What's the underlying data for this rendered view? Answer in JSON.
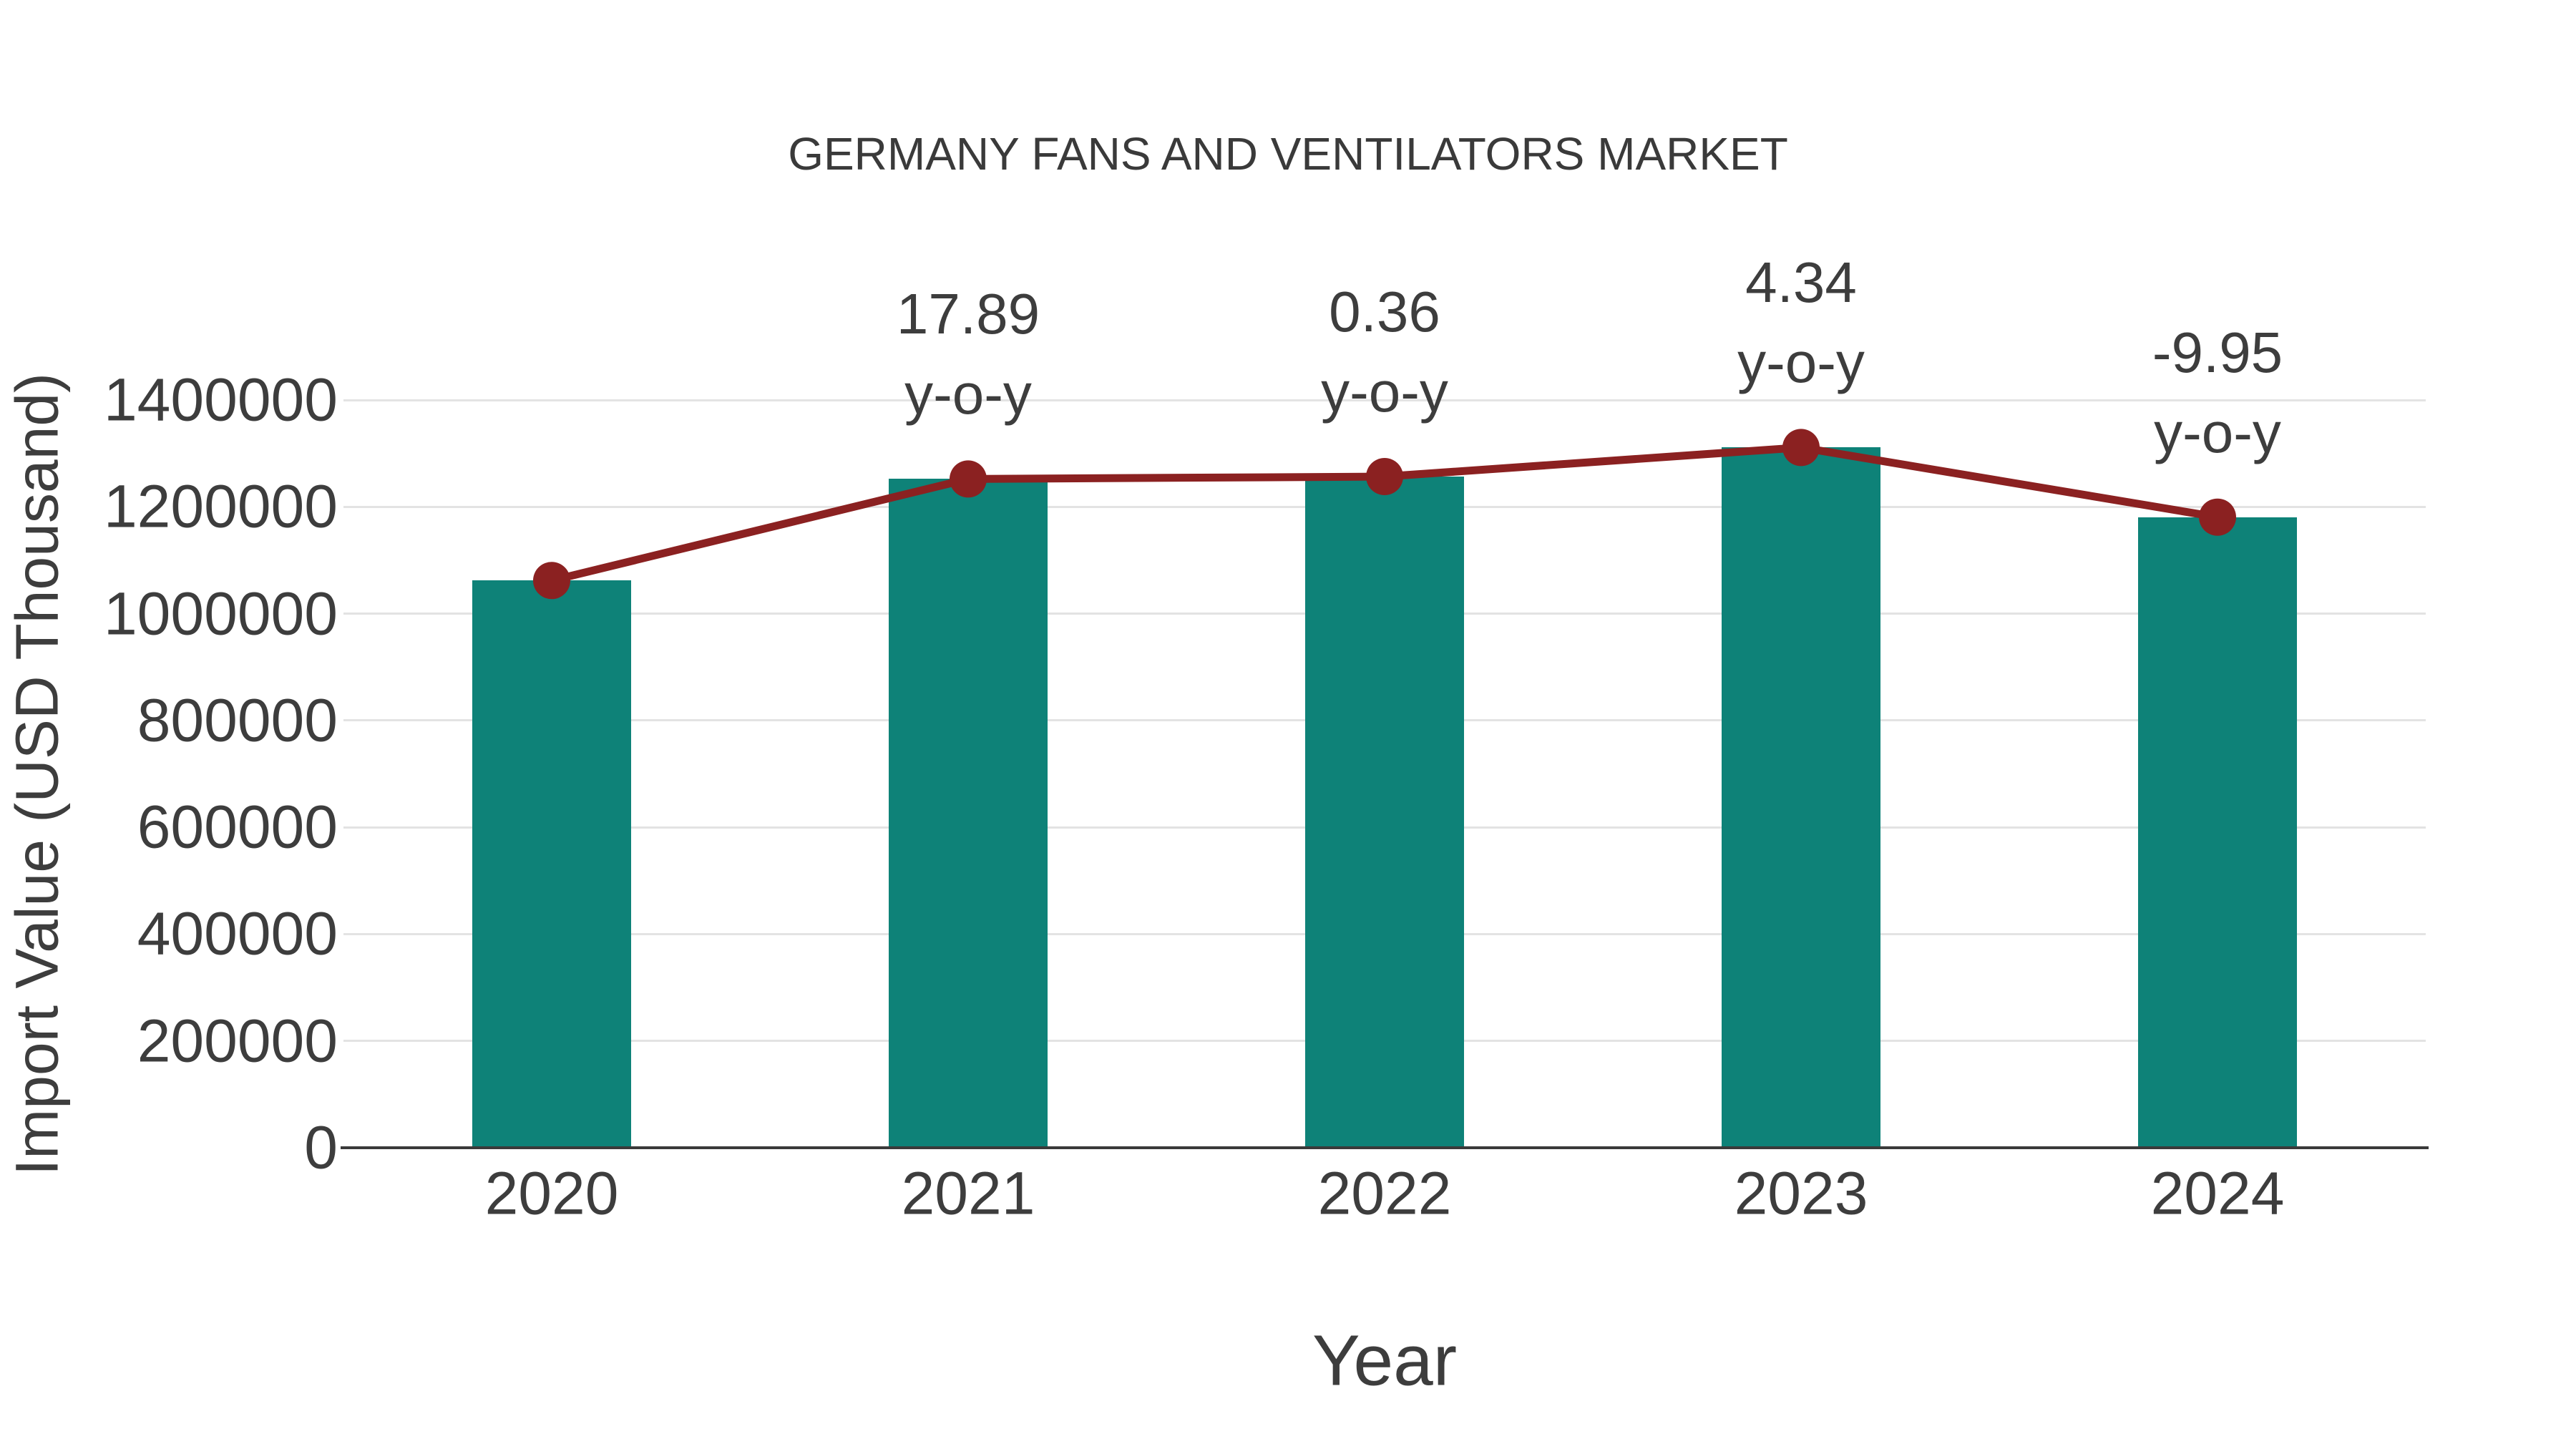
{
  "title": "GERMANY FANS AND VENTILATORS MARKET",
  "colors": {
    "bar": "#0e8278",
    "line": "#8b2121",
    "text": "#3d3d3d",
    "grid": "#e3e3e3",
    "axis": "#3a3a3a",
    "background": "#ffffff"
  },
  "chart_data": {
    "type": "bar",
    "title": "GERMANY FANS AND VENTILATORS MARKET",
    "xlabel": "Year",
    "ylabel": "Import Value (USD Thousand)",
    "categories": [
      "2020",
      "2021",
      "2022",
      "2023",
      "2024"
    ],
    "series": [
      {
        "name": "Import Value (USD Thousand)",
        "type": "bar",
        "color": "#0e8278",
        "values": [
          1062000,
          1252100,
          1256600,
          1311100,
          1180700
        ]
      },
      {
        "name": "Import Value trend",
        "type": "line",
        "color": "#8b2121",
        "values": [
          1062000,
          1252100,
          1256600,
          1311100,
          1180700
        ]
      }
    ],
    "annotations": [
      {
        "category": "2021",
        "value": "17.89",
        "suffix": "y-o-y"
      },
      {
        "category": "2022",
        "value": "0.36",
        "suffix": "y-o-y"
      },
      {
        "category": "2023",
        "value": "4.34",
        "suffix": "y-o-y"
      },
      {
        "category": "2024",
        "value": "-9.95",
        "suffix": "y-o-y"
      }
    ],
    "ylim": [
      0,
      1400000
    ],
    "yticks": [
      0,
      200000,
      400000,
      600000,
      800000,
      1000000,
      1200000,
      1400000
    ],
    "grid": "horizontal",
    "legend": "none"
  }
}
